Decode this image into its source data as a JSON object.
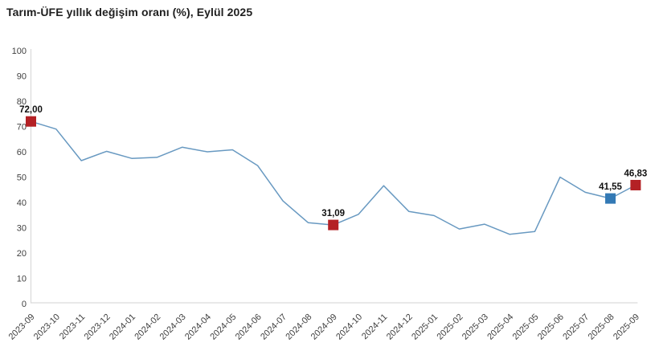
{
  "page": {
    "title": "Tarım-ÜFE yıllık değişim oranı (%), Eylül 2025"
  },
  "colors": {
    "line": "#6899c1",
    "marker_red": "#b42125",
    "marker_blue": "#3379b5",
    "axis_line": "#d9d9d9",
    "tick_text": "#3f3f3f",
    "data_label_text": "#111111"
  },
  "chart_data": {
    "type": "line",
    "title": "Tarım-ÜFE yıllık değişim oranı (%), Eylül 2025",
    "categories": [
      "2023-09",
      "2023-10",
      "2023-11",
      "2023-12",
      "2024-01",
      "2024-02",
      "2024-03",
      "2024-04",
      "2024-05",
      "2024-06",
      "2024-07",
      "2024-08",
      "2024-09",
      "2024-10",
      "2024-11",
      "2024-12",
      "2025-01",
      "2025-02",
      "2025-03",
      "2025-04",
      "2025-05",
      "2025-06",
      "2025-07",
      "2025-08",
      "2025-09"
    ],
    "values": [
      72.0,
      69.0,
      56.5,
      60.2,
      57.4,
      57.8,
      61.8,
      60.0,
      60.8,
      54.5,
      40.6,
      32.0,
      31.09,
      35.3,
      46.6,
      36.4,
      34.8,
      29.5,
      31.4,
      27.4,
      28.5,
      50.0,
      44.0,
      41.55,
      46.83
    ],
    "highlighted_points": [
      {
        "index": 0,
        "category": "2023-09",
        "label": "72,00",
        "marker": "red"
      },
      {
        "index": 12,
        "category": "2024-09",
        "label": "31,09",
        "marker": "red"
      },
      {
        "index": 23,
        "category": "2025-08",
        "label": "41,55",
        "marker": "blue"
      },
      {
        "index": 24,
        "category": "2025-09",
        "label": "46,83",
        "marker": "red"
      }
    ],
    "ylim": [
      0,
      100
    ],
    "yticks": [
      0,
      10,
      20,
      30,
      40,
      50,
      60,
      70,
      80,
      90,
      100
    ],
    "xlabel": "",
    "ylabel": "",
    "grid": false,
    "legend": false
  }
}
